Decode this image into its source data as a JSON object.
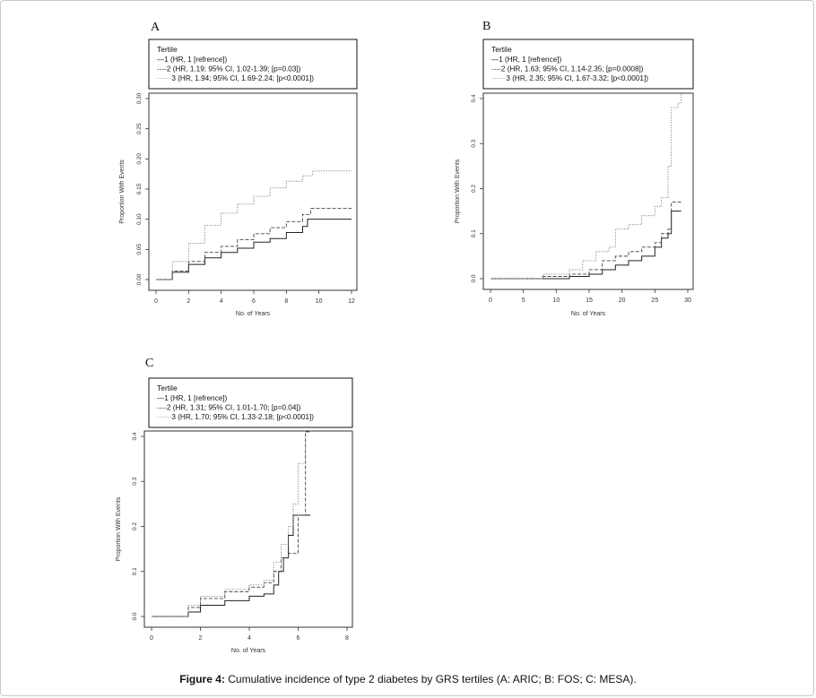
{
  "figure": {
    "caption_bold": "Figure 4:",
    "caption_text": " Cumulative incidence of type 2 diabetes by GRS tertiles (A: ARIC; B: FOS; C: MESA)."
  },
  "chart_data": [
    {
      "panel": "A",
      "type": "line",
      "step": true,
      "xlabel": "No. of Years",
      "ylabel": "Proportion With Events",
      "xlim": [
        0,
        12
      ],
      "ylim": [
        0,
        0.3
      ],
      "xticks": [
        "0",
        "2",
        "4",
        "6",
        "8",
        "10",
        "12"
      ],
      "yticks": [
        "0.00",
        "0.05",
        "0.10",
        "0.15",
        "0.20",
        "0.25",
        "0.30"
      ],
      "legend_title": "Tertile",
      "legend_placement": "top",
      "series": [
        {
          "name": "1 (HR, 1 [refrence])",
          "legend_prefix": "—",
          "style": "solid",
          "x": [
            0,
            1,
            2,
            3,
            4,
            5,
            6,
            7,
            8,
            9,
            9.3,
            12
          ],
          "y": [
            0,
            0.012,
            0.025,
            0.036,
            0.045,
            0.052,
            0.062,
            0.068,
            0.078,
            0.088,
            0.1,
            0.1
          ]
        },
        {
          "name": "2 (HR, 1.19; 95% CI, 1.02-1.39; [p=0.03])",
          "legend_prefix": "----",
          "style": "dashed",
          "x": [
            0,
            1,
            2,
            3,
            4,
            5,
            6,
            7,
            8,
            9,
            9.5,
            12
          ],
          "y": [
            0,
            0.014,
            0.03,
            0.045,
            0.055,
            0.066,
            0.076,
            0.086,
            0.096,
            0.108,
            0.118,
            0.118
          ]
        },
        {
          "name": "3 (HR, 1.94; 95% CI, 1.69-2.24; [p<0.0001])",
          "legend_prefix": "······",
          "style": "dotted",
          "x": [
            0,
            1,
            2,
            3,
            4,
            5,
            6,
            7,
            8,
            9,
            9.6,
            12
          ],
          "y": [
            0,
            0.03,
            0.06,
            0.09,
            0.11,
            0.125,
            0.138,
            0.152,
            0.163,
            0.172,
            0.18,
            0.18
          ]
        }
      ]
    },
    {
      "panel": "B",
      "type": "line",
      "step": true,
      "xlabel": "No. of Years",
      "ylabel": "Proportion With Events",
      "xlim": [
        0,
        30
      ],
      "ylim": [
        0,
        0.4
      ],
      "xticks": [
        "0",
        "5",
        "10",
        "15",
        "20",
        "25",
        "30"
      ],
      "yticks": [
        "0.0",
        "0.1",
        "0.2",
        "0.3",
        "0.4"
      ],
      "legend_title": "Tertile",
      "legend_placement": "top",
      "series": [
        {
          "name": "1 (HR, 1 [refrence])",
          "legend_prefix": "—",
          "style": "solid",
          "x": [
            0,
            8,
            12,
            15,
            17,
            19,
            21,
            23,
            25,
            26,
            27,
            27.5,
            29
          ],
          "y": [
            0,
            0,
            0.005,
            0.01,
            0.02,
            0.03,
            0.04,
            0.05,
            0.07,
            0.09,
            0.1,
            0.15,
            0.15
          ]
        },
        {
          "name": "2 (HR, 1.63; 95% CI, 1.14-2.35; [p=0.0008])",
          "legend_prefix": "----",
          "style": "dashed",
          "x": [
            0,
            8,
            12,
            15,
            17,
            19,
            21,
            23,
            25,
            26,
            27,
            27.5,
            29
          ],
          "y": [
            0,
            0.005,
            0.01,
            0.02,
            0.04,
            0.05,
            0.06,
            0.07,
            0.08,
            0.1,
            0.11,
            0.17,
            0.17
          ]
        },
        {
          "name": "3 (HR, 2.35; 95% CI, 1.67-3.32; [p<0.0001])",
          "legend_prefix": "······",
          "style": "dotted",
          "x": [
            0,
            8,
            12,
            14,
            16,
            18,
            19,
            21,
            23,
            25,
            26,
            27,
            27.5,
            28.5,
            29
          ],
          "y": [
            0,
            0.01,
            0.02,
            0.04,
            0.06,
            0.07,
            0.11,
            0.12,
            0.14,
            0.16,
            0.18,
            0.25,
            0.38,
            0.39,
            0.41
          ]
        }
      ]
    },
    {
      "panel": "C",
      "type": "line",
      "step": true,
      "xlabel": "No. of Years",
      "ylabel": "Proportion With Events",
      "xlim": [
        0,
        8
      ],
      "ylim": [
        0,
        0.4
      ],
      "xticks": [
        "0",
        "2",
        "4",
        "6",
        "8"
      ],
      "yticks": [
        "0.0",
        "0.1",
        "0.2",
        "0.3",
        "0.4"
      ],
      "legend_title": "Tertile",
      "legend_placement": "top",
      "series": [
        {
          "name": "1 (HR, 1 [refrence])",
          "legend_prefix": "—",
          "style": "solid",
          "x": [
            0,
            1.2,
            1.5,
            2,
            3,
            4,
            4.6,
            5,
            5.2,
            5.4,
            5.6,
            5.8,
            6.5
          ],
          "y": [
            0,
            0,
            0.01,
            0.025,
            0.035,
            0.045,
            0.05,
            0.07,
            0.1,
            0.13,
            0.18,
            0.225,
            0.225
          ]
        },
        {
          "name": "2 (HR, 1.31; 95% CI, 1.01-1.70; [p=0.04])",
          "legend_prefix": "----",
          "style": "dashed",
          "x": [
            0,
            1.2,
            1.5,
            2,
            3,
            4,
            4.6,
            5,
            5.3,
            5.6,
            6,
            6.3,
            6.5
          ],
          "y": [
            0,
            0,
            0.02,
            0.04,
            0.055,
            0.065,
            0.075,
            0.1,
            0.13,
            0.14,
            0.225,
            0.41,
            0.41
          ]
        },
        {
          "name": "3 (HR, 1.70; 95% CI, 1.33-2.18; [p<0.0001])",
          "legend_prefix": "······",
          "style": "dotted",
          "x": [
            0,
            1.2,
            1.5,
            2,
            3,
            4,
            4.6,
            5,
            5.3,
            5.6,
            5.8,
            6,
            6.3
          ],
          "y": [
            0,
            0,
            0.025,
            0.045,
            0.06,
            0.07,
            0.08,
            0.12,
            0.16,
            0.2,
            0.25,
            0.34,
            0.41
          ]
        }
      ]
    }
  ]
}
